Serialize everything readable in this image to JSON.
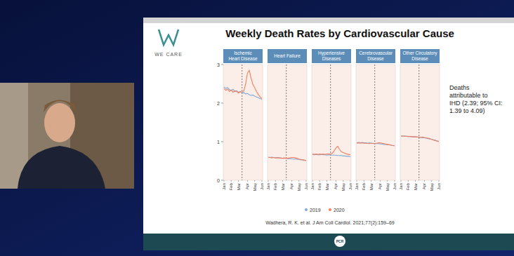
{
  "slide": {
    "title": "Weekly Death Rates by Cardiovascular Cause",
    "logo_text": "WE CARE",
    "annotation_lines": [
      "Deaths",
      "attributable to",
      "IHD (2.39; 95% CI:",
      "1.39 to 4.09)"
    ],
    "citation": "Wadhera, R. K. et al. J Am Coll Cardiol. 2021;77(2):159–69",
    "footer_logo": "PCR"
  },
  "chart_data": [
    {
      "type": "line",
      "title": "Ischemic\nHeart Disease",
      "categories": [
        "Jan",
        null,
        null,
        null,
        "Feb",
        null,
        null,
        null,
        "Mar",
        null,
        null,
        null,
        null,
        "Apr",
        null,
        null,
        null,
        "May",
        null,
        null,
        null,
        "Jun"
      ],
      "reference_x": 10,
      "series": [
        {
          "name": "2019",
          "color": "#7fa8d8",
          "values": [
            2.42,
            2.38,
            2.4,
            2.35,
            2.33,
            2.36,
            2.3,
            2.32,
            2.28,
            2.3,
            2.26,
            2.27,
            2.24,
            2.25,
            2.22,
            2.2,
            2.21,
            2.18,
            2.16,
            2.14,
            2.12,
            2.1
          ]
        },
        {
          "name": "2020",
          "color": "#f08060",
          "values": [
            2.38,
            2.33,
            2.36,
            2.3,
            2.34,
            2.28,
            2.32,
            2.3,
            2.26,
            2.3,
            2.28,
            2.32,
            2.5,
            2.78,
            2.85,
            2.65,
            2.48,
            2.4,
            2.3,
            2.22,
            2.16,
            2.12
          ]
        }
      ],
      "ylim": [
        0,
        3
      ],
      "yticks": [
        0,
        1,
        2,
        3
      ],
      "grid": false,
      "legend": "bottom",
      "tick_labels": true
    },
    {
      "type": "line",
      "title": "Heart Failure",
      "categories": [
        "Jan",
        null,
        null,
        null,
        "Feb",
        null,
        null,
        null,
        "Mar",
        null,
        null,
        null,
        null,
        "Apr",
        null,
        null,
        null,
        "May",
        null,
        null,
        null,
        "Jun"
      ],
      "reference_x": 10,
      "series": [
        {
          "name": "2019",
          "color": "#7fa8d8",
          "values": [
            0.6,
            0.59,
            0.6,
            0.59,
            0.58,
            0.59,
            0.58,
            0.58,
            0.57,
            0.57,
            0.57,
            0.56,
            0.56,
            0.56,
            0.55,
            0.55,
            0.54,
            0.54,
            0.53,
            0.53,
            0.52,
            0.51
          ]
        },
        {
          "name": "2020",
          "color": "#f08060",
          "values": [
            0.59,
            0.59,
            0.58,
            0.59,
            0.58,
            0.58,
            0.58,
            0.57,
            0.57,
            0.58,
            0.57,
            0.57,
            0.58,
            0.59,
            0.59,
            0.58,
            0.57,
            0.55,
            0.54,
            0.53,
            0.52,
            0.51
          ]
        }
      ],
      "ylim": [
        0,
        3
      ],
      "yticks": [
        0,
        1,
        2,
        3
      ],
      "grid": false,
      "tick_labels": "x"
    },
    {
      "type": "line",
      "title": "Hypertensive\nDiseases",
      "categories": [
        "Jan",
        null,
        null,
        null,
        "Feb",
        null,
        null,
        null,
        "Mar",
        null,
        null,
        null,
        null,
        "Apr",
        null,
        null,
        null,
        "May",
        null,
        null,
        null,
        "Jun"
      ],
      "reference_x": 10,
      "series": [
        {
          "name": "2019",
          "color": "#7fa8d8",
          "values": [
            0.67,
            0.66,
            0.67,
            0.66,
            0.66,
            0.67,
            0.66,
            0.66,
            0.65,
            0.66,
            0.65,
            0.65,
            0.65,
            0.65,
            0.64,
            0.64,
            0.64,
            0.63,
            0.63,
            0.62,
            0.62,
            0.61
          ]
        },
        {
          "name": "2020",
          "color": "#f08060",
          "values": [
            0.68,
            0.67,
            0.68,
            0.67,
            0.68,
            0.67,
            0.68,
            0.67,
            0.68,
            0.68,
            0.68,
            0.7,
            0.76,
            0.84,
            0.88,
            0.8,
            0.74,
            0.72,
            0.7,
            0.68,
            0.67,
            0.66
          ]
        }
      ],
      "ylim": [
        0,
        3
      ],
      "yticks": [
        0,
        1,
        2,
        3
      ],
      "grid": false,
      "tick_labels": "x"
    },
    {
      "type": "line",
      "title": "Cerebrovascular\nDisease",
      "categories": [
        "Jan",
        null,
        null,
        null,
        "Feb",
        null,
        null,
        null,
        "Mar",
        null,
        null,
        null,
        null,
        "Apr",
        null,
        null,
        null,
        "May",
        null,
        null,
        null,
        "Jun"
      ],
      "reference_x": 10,
      "series": [
        {
          "name": "2019",
          "color": "#7fa8d8",
          "values": [
            0.97,
            0.98,
            0.97,
            0.98,
            0.97,
            0.97,
            0.96,
            0.97,
            0.96,
            0.96,
            0.95,
            0.95,
            0.95,
            0.94,
            0.94,
            0.93,
            0.93,
            0.92,
            0.92,
            0.91,
            0.9,
            0.9
          ]
        },
        {
          "name": "2020",
          "color": "#f08060",
          "values": [
            0.96,
            0.97,
            0.96,
            0.97,
            0.96,
            0.96,
            0.96,
            0.95,
            0.96,
            0.95,
            0.95,
            0.96,
            0.97,
            0.97,
            0.96,
            0.95,
            0.94,
            0.93,
            0.92,
            0.91,
            0.9,
            0.89
          ]
        }
      ],
      "ylim": [
        0,
        3
      ],
      "yticks": [
        0,
        1,
        2,
        3
      ],
      "grid": false,
      "tick_labels": "x"
    },
    {
      "type": "line",
      "title": "Other Circulatory\nDisease",
      "categories": [
        "Jan",
        null,
        null,
        null,
        "Feb",
        null,
        null,
        null,
        "Mar",
        null,
        null,
        null,
        null,
        "Apr",
        null,
        null,
        null,
        "May",
        null,
        null,
        null,
        "Jun"
      ],
      "reference_x": 10,
      "series": [
        {
          "name": "2019",
          "color": "#7fa8d8",
          "values": [
            1.15,
            1.14,
            1.15,
            1.14,
            1.14,
            1.13,
            1.13,
            1.13,
            1.12,
            1.12,
            1.11,
            1.11,
            1.1,
            1.1,
            1.09,
            1.08,
            1.07,
            1.06,
            1.05,
            1.04,
            1.02,
            1.01
          ]
        },
        {
          "name": "2020",
          "color": "#f08060",
          "values": [
            1.14,
            1.15,
            1.14,
            1.14,
            1.13,
            1.14,
            1.13,
            1.12,
            1.13,
            1.12,
            1.12,
            1.11,
            1.12,
            1.11,
            1.1,
            1.09,
            1.08,
            1.06,
            1.04,
            1.03,
            1.01,
            1.0
          ]
        }
      ],
      "ylim": [
        0,
        3
      ],
      "yticks": [
        0,
        1,
        2,
        3
      ],
      "grid": false,
      "tick_labels": "x"
    }
  ]
}
